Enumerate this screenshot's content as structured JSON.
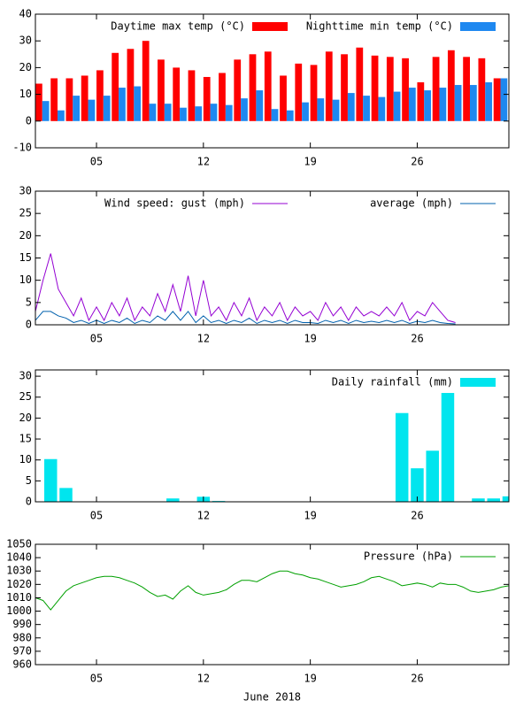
{
  "chart_data": [
    {
      "type": "bar",
      "x": [
        1,
        2,
        3,
        4,
        5,
        6,
        7,
        8,
        9,
        10,
        11,
        12,
        13,
        14,
        15,
        16,
        17,
        18,
        19,
        20,
        21,
        22,
        23,
        24,
        25,
        26,
        27,
        28,
        29,
        30,
        31
      ],
      "series": [
        {
          "name": "Daytime max temp (°C)",
          "color": "#ff0000",
          "values": [
            14,
            16,
            16,
            17,
            19,
            25.5,
            27,
            30,
            23,
            20,
            19,
            16.5,
            18,
            23,
            25,
            26,
            17,
            21.5,
            21,
            26,
            25,
            27.5,
            24.5,
            24,
            23.5,
            14.5,
            24,
            26.5,
            24,
            23.5,
            16
          ]
        },
        {
          "name": "Nighttime min temp (°C)",
          "color": "#1e88f0",
          "values": [
            7.5,
            4,
            9.5,
            8,
            9.5,
            12.5,
            13,
            6.5,
            6.5,
            5,
            5.5,
            6.5,
            6,
            8.5,
            11.5,
            4.5,
            4,
            7,
            8.5,
            8,
            10.5,
            9.5,
            9,
            11,
            12.5,
            11.5,
            12.5,
            13.5,
            13.5,
            14.5,
            16
          ]
        }
      ],
      "xlim": [
        1,
        32
      ],
      "xticks": [
        {
          "value": 5,
          "label": "05"
        },
        12,
        19,
        26
      ],
      "ylim": [
        -10,
        40
      ],
      "yticks": [
        -10,
        0,
        10,
        20,
        30,
        40
      ]
    },
    {
      "type": "line",
      "x": [
        1,
        1.5,
        2,
        2.5,
        3,
        3.5,
        4,
        4.5,
        5,
        5.5,
        6,
        6.5,
        7,
        7.5,
        8,
        8.5,
        9,
        9.5,
        10,
        10.5,
        11,
        11.5,
        12,
        12.5,
        13,
        13.5,
        14,
        14.5,
        15,
        15.5,
        16,
        16.5,
        17,
        17.5,
        18,
        18.5,
        19,
        19.5,
        20,
        20.5,
        21,
        21.5,
        22,
        22.5,
        23,
        23.5,
        24,
        24.5,
        25,
        25.5,
        26,
        26.5,
        27,
        27.5,
        28,
        28.5
      ],
      "series": [
        {
          "name": "Wind speed: gust (mph)",
          "color": "#9400d3",
          "values": [
            3,
            10,
            16,
            8,
            5,
            2,
            6,
            1,
            4,
            1,
            5,
            2,
            6,
            1,
            4,
            2,
            7,
            3,
            9,
            3,
            11,
            2,
            10,
            2,
            4,
            1,
            5,
            2,
            6,
            1,
            4,
            2,
            5,
            1,
            4,
            2,
            3,
            1,
            5,
            2,
            4,
            1,
            4,
            2,
            3,
            2,
            4,
            2,
            5,
            1,
            3,
            2,
            5,
            3,
            1,
            0.5
          ]
        },
        {
          "name": "average (mph)",
          "color": "#0060ad",
          "values": [
            1,
            3,
            3,
            2,
            1.5,
            0.5,
            1,
            0.3,
            1,
            0.3,
            1,
            0.5,
            1.5,
            0.3,
            1,
            0.5,
            2,
            1,
            3,
            1,
            3,
            0.5,
            2,
            0.5,
            1,
            0.3,
            1,
            0.5,
            1.5,
            0.3,
            1,
            0.5,
            1,
            0.3,
            1,
            0.5,
            0.5,
            0.3,
            1,
            0.5,
            1,
            0.3,
            1,
            0.5,
            0.8,
            0.5,
            1,
            0.5,
            1,
            0.3,
            0.8,
            0.5,
            1,
            0.5,
            0.3,
            0.2
          ]
        }
      ],
      "xlim": [
        1,
        32
      ],
      "xticks": [
        {
          "value": 5,
          "label": "05"
        },
        12,
        19,
        26
      ],
      "ylim": [
        0,
        30
      ],
      "yticks": [
        0,
        5,
        10,
        15,
        20,
        25,
        30
      ]
    },
    {
      "type": "bar",
      "x": [
        2,
        3,
        10,
        12,
        13,
        25,
        26,
        27,
        28,
        30,
        31,
        32
      ],
      "series": [
        {
          "name": "Daily rainfall (mm)",
          "color": "#00e5ee",
          "values": [
            10.2,
            3.3,
            0.8,
            1.2,
            0.2,
            21.2,
            8,
            12.2,
            26,
            0.8,
            0.8,
            1.3
          ]
        }
      ],
      "xlim": [
        1,
        32
      ],
      "xticks": [
        {
          "value": 5,
          "label": "05"
        },
        12,
        19,
        26
      ],
      "ylim": [
        0,
        31.5
      ],
      "yticks": [
        0,
        5,
        10,
        15,
        20,
        25,
        30
      ]
    },
    {
      "type": "line",
      "x": [
        1,
        1.5,
        2,
        2.5,
        3,
        3.5,
        4,
        4.5,
        5,
        5.5,
        6,
        6.5,
        7,
        7.5,
        8,
        8.5,
        9,
        9.5,
        10,
        10.5,
        11,
        11.5,
        12,
        12.5,
        13,
        13.5,
        14,
        14.5,
        15,
        15.5,
        16,
        16.5,
        17,
        17.5,
        18,
        18.5,
        19,
        19.5,
        20,
        20.5,
        21,
        21.5,
        22,
        22.5,
        23,
        23.5,
        24,
        24.5,
        25,
        25.5,
        26,
        26.5,
        27,
        27.5,
        28,
        28.5,
        29,
        29.5,
        30,
        30.5,
        31,
        31.5,
        32
      ],
      "series": [
        {
          "name": "Pressure (hPa)",
          "color": "#00a000",
          "values": [
            1010,
            1008,
            1001,
            1008,
            1015,
            1019,
            1021,
            1023,
            1025,
            1026,
            1026,
            1025,
            1023,
            1021,
            1018,
            1014,
            1011,
            1012,
            1009,
            1015,
            1019,
            1014,
            1012,
            1013,
            1014,
            1016,
            1020,
            1023,
            1023,
            1022,
            1025,
            1028,
            1030,
            1030,
            1028,
            1027,
            1025,
            1024,
            1022,
            1020,
            1018,
            1019,
            1020,
            1022,
            1025,
            1026,
            1024,
            1022,
            1019,
            1020,
            1021,
            1020,
            1018,
            1021,
            1020,
            1020,
            1018,
            1015,
            1014,
            1015,
            1016,
            1018,
            1019
          ]
        }
      ],
      "xlim": [
        1,
        32
      ],
      "xticks": [
        {
          "value": 5,
          "label": "05"
        },
        12,
        19,
        26
      ],
      "ylim": [
        960,
        1050
      ],
      "yticks": [
        960,
        970,
        980,
        990,
        1000,
        1010,
        1020,
        1030,
        1040,
        1050
      ],
      "xlabel": "June 2018"
    }
  ]
}
